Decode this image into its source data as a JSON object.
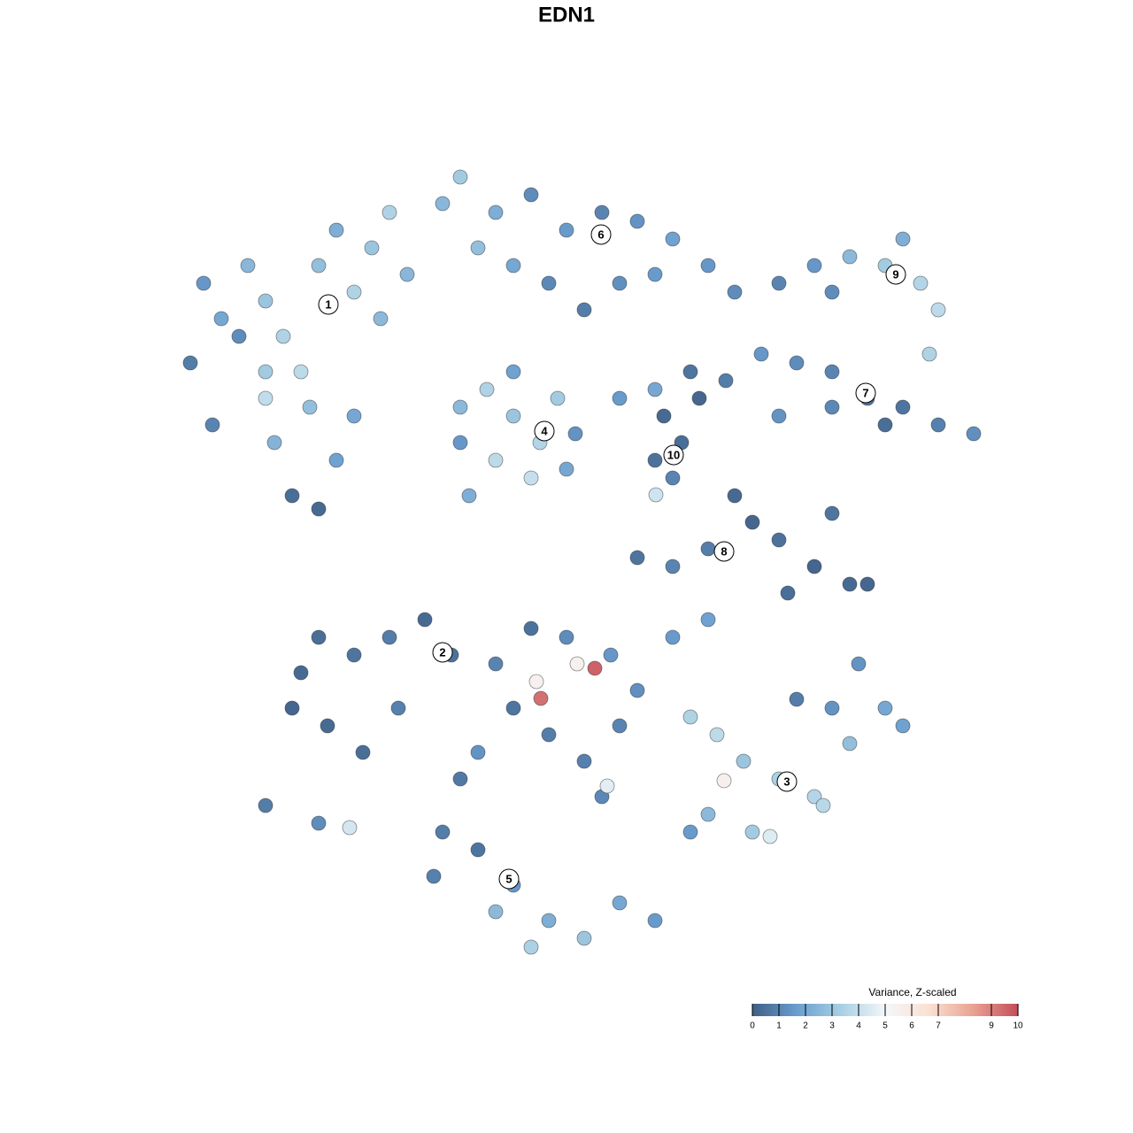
{
  "chart_data": {
    "type": "scatter",
    "title": "EDN1",
    "xlim": [
      0,
      1280
    ],
    "ylim": [
      1280,
      0
    ],
    "series": [
      {
        "name": "cells",
        "x": [
          230,
          250,
          215,
          240,
          280,
          300,
          320,
          340,
          300,
          360,
          380,
          400,
          420,
          440,
          460,
          350,
          310,
          380,
          330,
          360,
          400,
          300,
          270,
          430,
          500,
          520,
          560,
          600,
          640,
          680,
          720,
          760,
          800,
          830,
          580,
          620,
          700,
          660,
          540,
          740,
          880,
          920,
          960,
          1000,
          1040,
          1060,
          1050,
          1020,
          940,
          780,
          820,
          860,
          900,
          940,
          980,
          1020,
          1060,
          1100,
          1000,
          940,
          880,
          520,
          550,
          580,
          610,
          630,
          560,
          600,
          530,
          580,
          650,
          640,
          520,
          700,
          740,
          750,
          770,
          760,
          790,
          740,
          741,
          830,
          850,
          880,
          920,
          960,
          890,
          940,
          800,
          760,
          720,
          980,
          340,
          360,
          400,
          440,
          480,
          510,
          330,
          370,
          410,
          450,
          300,
          360,
          395,
          560,
          600,
          640,
          690,
          720,
          760,
          800,
          580,
          620,
          660,
          700,
          520,
          500,
          540,
          580,
          620,
          660,
          700,
          740,
          600,
          560,
          680,
          540,
          490,
          672,
          611,
          652,
          606,
          686,
          780,
          810,
          840,
          880,
          920,
          960,
          1000,
          1020,
          900,
          940,
          800,
          850,
          870,
          818,
          780,
          930,
          970
        ],
        "y": [
          320,
          360,
          410,
          480,
          300,
          340,
          380,
          420,
          420,
          300,
          260,
          330,
          280,
          240,
          310,
          460,
          500,
          520,
          560,
          575,
          470,
          450,
          380,
          360,
          230,
          200,
          240,
          220,
          260,
          240,
          250,
          270,
          300,
          330,
          300,
          320,
          320,
          350,
          280,
          310,
          320,
          300,
          290,
          300,
          320,
          350,
          400,
          270,
          330,
          420,
          430,
          400,
          410,
          420,
          450,
          460,
          480,
          490,
          480,
          460,
          470,
          460,
          440,
          470,
          500,
          450,
          520,
          540,
          560,
          420,
          490,
          530,
          500,
          450,
          440,
          470,
          500,
          540,
          450,
          520,
          559,
          560,
          590,
          610,
          640,
          660,
          670,
          580,
          620,
          640,
          630,
          660,
          760,
          720,
          740,
          720,
          700,
          740,
          800,
          820,
          850,
          800,
          910,
          930,
          935,
          750,
          710,
          720,
          740,
          780,
          720,
          700,
          800,
          830,
          860,
          820,
          880,
          940,
          960,
          1000,
          1040,
          1060,
          1020,
          1040,
          1070,
          1030,
          900,
          850,
          990,
          755,
          789,
          750,
          770,
          888,
          810,
          830,
          860,
          880,
          900,
          840,
          800,
          820,
          790,
          800,
          920,
          940,
          945,
          882,
          940,
          910,
          750
        ],
        "values": [
          1.5,
          2,
          0.8,
          1,
          2.5,
          3,
          3.5,
          3.8,
          3.2,
          2.8,
          2.2,
          3.5,
          3,
          3.5,
          2.5,
          2.8,
          2.4,
          1.8,
          0.4,
          0.3,
          2,
          3.9,
          1.2,
          2.6,
          2.5,
          3.2,
          2.2,
          1.2,
          1.6,
          1,
          1.4,
          1.8,
          1.5,
          1.2,
          2,
          1.1,
          1.3,
          0.8,
          2.8,
          1.6,
          1,
          1.5,
          2.6,
          3.2,
          3.6,
          3.8,
          3.5,
          2.2,
          1.2,
          0.6,
          0.8,
          1.5,
          1.2,
          1,
          0.5,
          0.6,
          0.9,
          1.3,
          0.4,
          1.1,
          1.4,
          2.6,
          3.5,
          3,
          3.6,
          3.2,
          3.8,
          4,
          2.2,
          1.8,
          1.4,
          2,
          1.5,
          1.6,
          2,
          0.3,
          0.4,
          1,
          0.2,
          0.5,
          4.2,
          0.3,
          0.2,
          0.5,
          0.2,
          0.3,
          0.4,
          0.6,
          0.8,
          1,
          0.6,
          0.2,
          0.3,
          0.4,
          0.6,
          0.8,
          0.3,
          0.5,
          0.2,
          0.3,
          0.4,
          0.9,
          0.8,
          1.2,
          4.3,
          1,
          0.5,
          1.2,
          1.5,
          1.3,
          1.6,
          1.8,
          0.6,
          0.8,
          0.9,
          1,
          0.7,
          0.8,
          0.6,
          1.5,
          2.2,
          3,
          2,
          1.6,
          3.4,
          2.6,
          1.1,
          1.4,
          0.9,
          9.6,
          9.3,
          5.5,
          5.4,
          4.6,
          3.5,
          3.8,
          3,
          3.4,
          3.6,
          2.8,
          2,
          1.8,
          0.8,
          1.4,
          2.6,
          3.2,
          4.5,
          5.6,
          1.6,
          3.7,
          1.4
        ]
      }
    ],
    "cluster_labels": [
      {
        "text": "1",
        "x": 371,
        "y": 344
      },
      {
        "text": "2",
        "x": 500,
        "y": 737
      },
      {
        "text": "3",
        "x": 889,
        "y": 883
      },
      {
        "text": "4",
        "x": 615,
        "y": 487
      },
      {
        "text": "5",
        "x": 575,
        "y": 993
      },
      {
        "text": "6",
        "x": 679,
        "y": 265
      },
      {
        "text": "7",
        "x": 978,
        "y": 444
      },
      {
        "text": "8",
        "x": 818,
        "y": 623
      },
      {
        "text": "9",
        "x": 1012,
        "y": 310
      },
      {
        "text": "10",
        "x": 761,
        "y": 514
      }
    ],
    "colorbar": {
      "title": "Variance, Z-scaled",
      "clim": [
        0,
        10
      ],
      "ticks": [
        0,
        1,
        2,
        3,
        4,
        5,
        6,
        7,
        9,
        10
      ],
      "colormap": [
        "#3f5f86",
        "#6a9dcf",
        "#a7cfe3",
        "#f4f7fa",
        "#fbe0d2",
        "#e8a191",
        "#c44e5b"
      ]
    }
  }
}
